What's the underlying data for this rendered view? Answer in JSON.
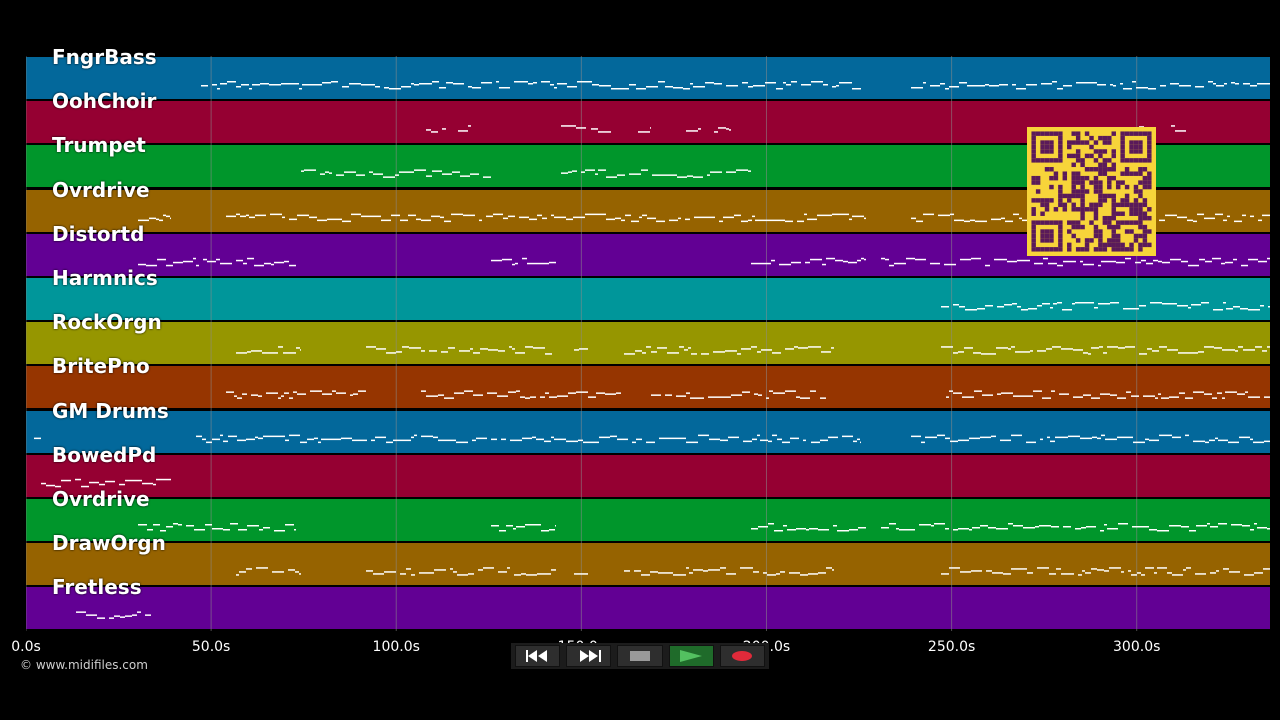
{
  "tracks": [
    {
      "name": "FngrBass",
      "color": "#03689b"
    },
    {
      "name": "OohChoir",
      "color": "#950032"
    },
    {
      "name": "Trumpet",
      "color": "#00962b"
    },
    {
      "name": "Ovrdrive",
      "color": "#966300"
    },
    {
      "name": "Distortd",
      "color": "#620094"
    },
    {
      "name": "Harmnics",
      "color": "#00969a"
    },
    {
      "name": "RockOrgn",
      "color": "#969600"
    },
    {
      "name": "BritePno",
      "color": "#963500"
    },
    {
      "name": "GM Drums",
      "color": "#03689b"
    },
    {
      "name": "BowedPd",
      "color": "#950032"
    },
    {
      "name": "Ovrdrive",
      "color": "#00962b"
    },
    {
      "name": "DrawOrgn",
      "color": "#966300"
    },
    {
      "name": "Fretless",
      "color": "#620094"
    }
  ],
  "timeline": {
    "ticks": [
      "0.0s",
      "50.0s",
      "100.0s",
      "150.0s",
      "200.0s",
      "250.0s",
      "300.0s"
    ],
    "tick_values": [
      0,
      50,
      100,
      150,
      200,
      250,
      300
    ],
    "max_seconds": 336
  },
  "copyright": "© www.midifiles.com",
  "transport": {
    "rewind_icon": "rewind-icon",
    "forward_icon": "fast-forward-icon",
    "stop_icon": "stop-icon",
    "play_icon": "play-icon",
    "record_icon": "record-icon"
  },
  "colors": {
    "grid": "#8a8a8a",
    "note": "#ffffff",
    "qr_bg": "#f7d43a",
    "qr_fg": "#5a1a5a"
  }
}
